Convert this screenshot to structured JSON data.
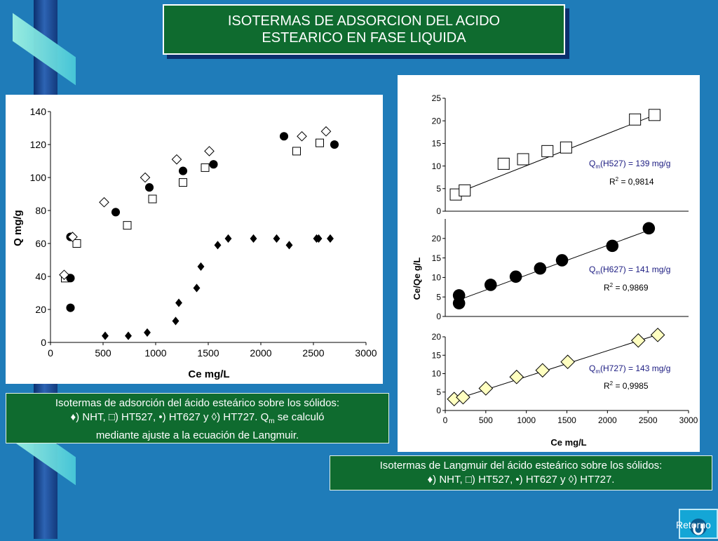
{
  "slide": {
    "title_line1": "ISOTERMAS DE ADSORCION DEL ACIDO",
    "title_line2": "ESTEARICO EN FASE LIQUIDA",
    "retorno_label": "Retorno",
    "retorno_icon": "u-turn-arrow-icon"
  },
  "caption_left": {
    "line1": "Isotermas de adsorción del ácido esteárico sobre los sólidos:",
    "line2": "♦) NHT, □) HT527, •) HT627 y  ◊) HT727. Q",
    "line2_sub": "m",
    "line2_end": " se calculó",
    "line3": "mediante ajuste a la ecuación de Langmuir."
  },
  "caption_right": {
    "line1": "Isotermas de Langmuir del ácido esteárico sobre los sólidos:",
    "line2": "♦) NHT, □) HT527, •) HT627 y  ◊) HT727."
  },
  "colors": {
    "background": "#1f7cb9",
    "title_box": "#0f6b2f",
    "caption_box": "#0f6b2f",
    "ht727_fill": "#ffffc0",
    "retorno_box": "#14a6d6"
  },
  "chart_data": [
    {
      "type": "scatter",
      "title": "",
      "xlabel": "Ce mg/L",
      "ylabel": "Q mg/g",
      "xlim": [
        0,
        3000
      ],
      "ylim": [
        0,
        140
      ],
      "xticks": [
        "0",
        "500",
        "1000",
        "1500",
        "2000",
        "2500",
        "3000"
      ],
      "yticks": [
        "0",
        "20",
        "40",
        "60",
        "80",
        "100",
        "120",
        "140"
      ],
      "series": [
        {
          "marker": "filled-diamond",
          "points": [
            [
              520,
              4
            ],
            [
              740,
              4
            ],
            [
              920,
              6
            ],
            [
              1190,
              13
            ],
            [
              1220,
              24
            ],
            [
              1390,
              33
            ],
            [
              1430,
              46
            ],
            [
              1590,
              59
            ],
            [
              1690,
              63
            ],
            [
              1930,
              63
            ],
            [
              2150,
              63
            ],
            [
              2270,
              59
            ],
            [
              2530,
              63
            ],
            [
              2550,
              63
            ],
            [
              2660,
              63
            ]
          ]
        },
        {
          "marker": "open-square",
          "points": [
            [
              140,
              39
            ],
            [
              250,
              60
            ],
            [
              730,
              71
            ],
            [
              970,
              87
            ],
            [
              1260,
              97
            ],
            [
              1470,
              106
            ],
            [
              2340,
              116
            ],
            [
              2560,
              121
            ]
          ]
        },
        {
          "marker": "filled-circle",
          "points": [
            [
              190,
              21
            ],
            [
              190,
              39
            ],
            [
              190,
              64
            ],
            [
              620,
              79
            ],
            [
              940,
              94
            ],
            [
              1260,
              104
            ],
            [
              1550,
              108
            ],
            [
              2220,
              125
            ],
            [
              2700,
              120
            ]
          ]
        },
        {
          "marker": "open-diamond",
          "points": [
            [
              130,
              41
            ],
            [
              210,
              64
            ],
            [
              510,
              85
            ],
            [
              900,
              100
            ],
            [
              1200,
              111
            ],
            [
              1510,
              116
            ],
            [
              2390,
              125
            ],
            [
              2620,
              128
            ]
          ]
        }
      ]
    },
    {
      "type": "scatter",
      "title": "",
      "xlabel": "",
      "ylabel": "",
      "xlim": [
        0,
        3000
      ],
      "ylim": [
        0,
        25
      ],
      "yticks": [
        "0",
        "5",
        "10",
        "15",
        "20",
        "25"
      ],
      "fit_label": "Q",
      "fit_label_sub": "m",
      "fit_label_rest": "(H527) = 139 mg/g",
      "r2_label": "R",
      "r2_sup": "2",
      "r2_value": " = 0,9814",
      "series": [
        {
          "marker": "open-square",
          "points": [
            [
              130,
              3.7
            ],
            [
              240,
              4.6
            ],
            [
              720,
              10.5
            ],
            [
              960,
              11.5
            ],
            [
              1260,
              13.3
            ],
            [
              1490,
              14.1
            ],
            [
              2340,
              20.3
            ],
            [
              2580,
              21.3
            ]
          ]
        }
      ],
      "fit_line": [
        [
          130,
          3.9
        ],
        [
          2600,
          21.4
        ]
      ]
    },
    {
      "type": "scatter",
      "title": "",
      "xlabel": "",
      "ylabel": "Ce/Qe g/L",
      "xlim": [
        0,
        3000
      ],
      "ylim": [
        0,
        25
      ],
      "yticks": [
        "0",
        "5",
        "10",
        "15",
        "20"
      ],
      "fit_label": "Q",
      "fit_label_sub": "m",
      "fit_label_rest": "(H627) = 141 mg/g",
      "r2_label": "R",
      "r2_sup": "2",
      "r2_value": " = 0,9869",
      "series": [
        {
          "marker": "filled-circle",
          "points": [
            [
              170,
              3.4
            ],
            [
              170,
              5.4
            ],
            [
              560,
              8.1
            ],
            [
              870,
              10.2
            ],
            [
              1170,
              12.3
            ],
            [
              1440,
              14.4
            ],
            [
              2060,
              18.1
            ],
            [
              2510,
              22.6
            ]
          ]
        }
      ],
      "fit_line": [
        [
          150,
          4.1
        ],
        [
          2550,
          22.4
        ]
      ]
    },
    {
      "type": "scatter",
      "title": "",
      "xlabel": "Ce mg/L",
      "ylabel": "",
      "xlim": [
        0,
        3000
      ],
      "ylim": [
        0,
        20
      ],
      "xticks": [
        "0",
        "500",
        "1000",
        "1500",
        "2000",
        "2500",
        "3000"
      ],
      "yticks": [
        "0",
        "5",
        "10",
        "15",
        "20"
      ],
      "fit_label": "Q",
      "fit_label_sub": "m",
      "fit_label_rest": "(H727) = 143 mg/g",
      "r2_label": "R",
      "r2_sup": "2",
      "r2_value": " = 0,9985",
      "series": [
        {
          "marker": "open-diamond-yellow",
          "points": [
            [
              110,
              3.1
            ],
            [
              220,
              3.6
            ],
            [
              500,
              6.0
            ],
            [
              880,
              9.1
            ],
            [
              1200,
              10.9
            ],
            [
              1510,
              13.2
            ],
            [
              2380,
              19.0
            ],
            [
              2620,
              20.5
            ]
          ]
        }
      ],
      "fit_line": [
        [
          110,
          2.9
        ],
        [
          2620,
          20.6
        ]
      ]
    }
  ]
}
